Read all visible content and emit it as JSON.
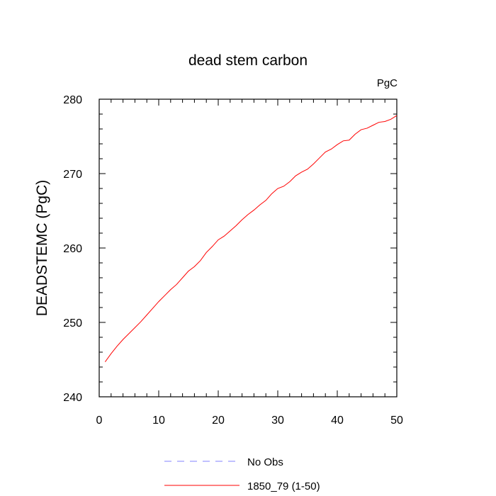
{
  "chart_data": {
    "type": "line",
    "title": "dead stem carbon",
    "units_label": "PgC",
    "xlabel": "",
    "ylabel": "DEADSTEMC  (PgC)",
    "xlim": [
      0,
      50
    ],
    "ylim": [
      240,
      280
    ],
    "x_ticks": [
      0,
      10,
      20,
      30,
      40,
      50
    ],
    "y_ticks": [
      240,
      250,
      260,
      270,
      280
    ],
    "grid": false,
    "legend_position": "bottom-center",
    "series": [
      {
        "name": "No Obs",
        "color": "#8080ff",
        "dash": true,
        "x": [],
        "values": []
      },
      {
        "name": "1850_79 (1-50)",
        "color": "#ff0000",
        "dash": false,
        "x": [
          1,
          2,
          3,
          4,
          5,
          6,
          7,
          8,
          9,
          10,
          11,
          12,
          13,
          14,
          15,
          16,
          17,
          18,
          19,
          20,
          21,
          22,
          23,
          24,
          25,
          26,
          27,
          28,
          29,
          30,
          31,
          32,
          33,
          34,
          35,
          36,
          37,
          38,
          39,
          40,
          41,
          42,
          43,
          44,
          45,
          46,
          47,
          48,
          49,
          50
        ],
        "values": [
          244.7,
          245.8,
          246.8,
          247.7,
          248.5,
          249.3,
          250.1,
          251.0,
          251.9,
          252.8,
          253.6,
          254.4,
          255.1,
          256.0,
          256.9,
          257.5,
          258.3,
          259.4,
          260.2,
          261.1,
          261.6,
          262.3,
          263.0,
          263.8,
          264.5,
          265.1,
          265.8,
          266.4,
          267.3,
          268.0,
          268.3,
          268.9,
          269.7,
          270.2,
          270.6,
          271.3,
          272.1,
          272.9,
          273.3,
          273.9,
          274.4,
          274.5,
          275.3,
          275.9,
          276.1,
          276.5,
          276.9,
          277.0,
          277.3,
          277.8
        ]
      }
    ]
  }
}
